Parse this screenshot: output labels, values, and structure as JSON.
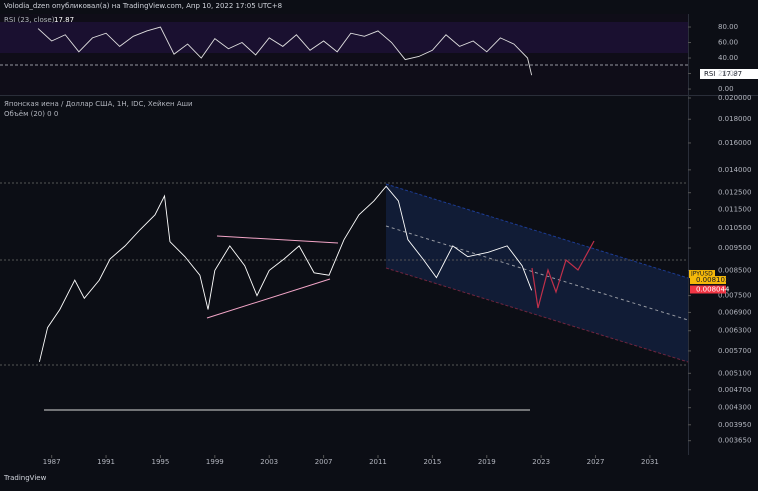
{
  "header": "Volodia_dzen опубликовал(а) на TradingView.com, Апр 10, 2022 17:05 UTC+8",
  "footer": "TradingView",
  "rsi": {
    "type": "line",
    "legend": "RSI (23, close)",
    "badge": "RSI",
    "color": "#e0e0e0",
    "x": [
      1986,
      1987,
      1988,
      1989,
      1990,
      1991,
      1992,
      1993,
      1994,
      1995,
      1996,
      1997,
      1998,
      1999,
      2000,
      2001,
      2002,
      2003,
      2004,
      2005,
      2006,
      2007,
      2008,
      2009,
      2010,
      2011,
      2012,
      2013,
      2014,
      2015,
      2016,
      2017,
      2018,
      2019,
      2020,
      2021,
      2022,
      2022.3
    ],
    "values": [
      78,
      62,
      70,
      48,
      66,
      72,
      55,
      68,
      75,
      80,
      45,
      58,
      40,
      65,
      52,
      60,
      44,
      66,
      55,
      70,
      50,
      62,
      48,
      72,
      68,
      75,
      60,
      38,
      42,
      50,
      70,
      55,
      62,
      48,
      66,
      58,
      40,
      17.87
    ],
    "ylim": [
      -7.7,
      96.8
    ],
    "yticks": [
      {
        "value": 80,
        "label": "80.00"
      },
      {
        "value": 60,
        "label": "60.00"
      },
      {
        "value": 40,
        "label": "40.00"
      },
      {
        "value": 20,
        "label": "20.00"
      },
      {
        "value": 0,
        "label": "0.00"
      }
    ]
  },
  "chart_data": {
    "type": "line",
    "title": "Японская иена / Доллар США, 1Н, IDC, Хейкен Аши",
    "subtitle": "Объём (20)  0  0",
    "symbol": "JPYUSD",
    "last_price": 0.008103,
    "prev_price": 0.008044,
    "log_scale": true,
    "x": [
      1986.1,
      1986.7,
      1987.6,
      1988.7,
      1989.4,
      1990.5,
      1991.3,
      1992.4,
      1993.5,
      1994.6,
      1995.3,
      1995.7,
      1996.8,
      1997.9,
      1998.5,
      1999.0,
      2000.1,
      2001.2,
      2002.1,
      2003.0,
      2004.1,
      2005.2,
      2006.3,
      2007.4,
      2008.5,
      2009.6,
      2010.7,
      2011.6,
      2012.5,
      2013.2,
      2014.3,
      2015.3,
      2016.5,
      2017.6,
      2019.1,
      2020.5,
      2021.6,
      2022.3
    ],
    "series": [
      {
        "name": "JPYUSD",
        "color": "#ffffff",
        "values": [
          0.0054,
          0.0064,
          0.007,
          0.0081,
          0.0074,
          0.0081,
          0.009,
          0.0096,
          0.0104,
          0.0112,
          0.0123,
          0.0098,
          0.0091,
          0.0083,
          0.007,
          0.0085,
          0.0096,
          0.0087,
          0.0075,
          0.0085,
          0.009,
          0.0096,
          0.0084,
          0.0083,
          0.0099,
          0.0112,
          0.012,
          0.0129,
          0.012,
          0.0099,
          0.009,
          0.0082,
          0.0096,
          0.0091,
          0.0093,
          0.0096,
          0.0087,
          0.0077
        ]
      }
    ],
    "xlim": [
      1983.2,
      2033.8
    ],
    "xticks": [
      1987,
      1991,
      1995,
      1999,
      2003,
      2007,
      2011,
      2015,
      2019,
      2023,
      2027,
      2031
    ],
    "ylim": [
      0.0034,
      0.0202
    ],
    "yticks": [
      {
        "value": 0.02,
        "label": "0.020000"
      },
      {
        "value": 0.018,
        "label": "0.018000"
      },
      {
        "value": 0.016,
        "label": "0.016000"
      },
      {
        "value": 0.014,
        "label": "0.014000"
      },
      {
        "value": 0.0125,
        "label": "0.012500"
      },
      {
        "value": 0.0115,
        "label": "0.011500"
      },
      {
        "value": 0.0105,
        "label": "0.010500"
      },
      {
        "value": 0.0095,
        "label": "0.009500"
      },
      {
        "value": 0.0085,
        "label": "0.008500"
      },
      {
        "value": 0.0075,
        "label": "0.007500"
      },
      {
        "value": 0.0069,
        "label": "0.006900"
      },
      {
        "value": 0.0063,
        "label": "0.006300"
      },
      {
        "value": 0.0057,
        "label": "0.005700"
      },
      {
        "value": 0.0051,
        "label": "0.005100"
      },
      {
        "value": 0.0047,
        "label": "0.004700"
      },
      {
        "value": 0.0043,
        "label": "0.004300"
      },
      {
        "value": 0.00395,
        "label": "0.003950"
      },
      {
        "value": 0.00365,
        "label": "0.003650"
      }
    ]
  }
}
